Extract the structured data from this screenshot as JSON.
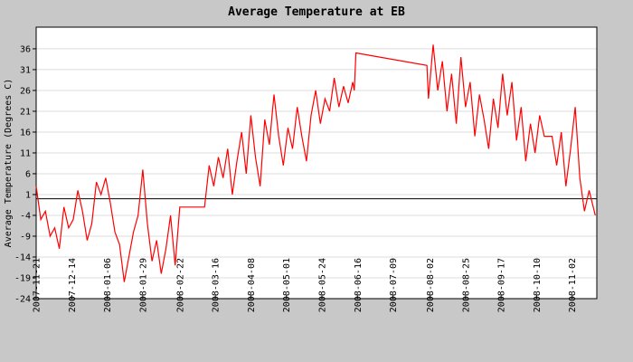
{
  "chart_data": {
    "type": "line",
    "title": "Average Temperature at EB",
    "y_label": "Average Temperature (Degrees C)",
    "x": [
      "2007-11-21",
      "2007-11-24",
      "2007-11-27",
      "2007-11-30",
      "2007-12-03",
      "2007-12-06",
      "2007-12-09",
      "2007-12-12",
      "2007-12-15",
      "2007-12-18",
      "2007-12-21",
      "2007-12-24",
      "2007-12-27",
      "2007-12-30",
      "2008-01-02",
      "2008-01-05",
      "2008-01-08",
      "2008-01-11",
      "2008-01-14",
      "2008-01-17",
      "2008-01-20",
      "2008-01-23",
      "2008-01-26",
      "2008-01-29",
      "2008-02-01",
      "2008-02-04",
      "2008-02-07",
      "2008-02-10",
      "2008-02-13",
      "2008-02-16",
      "2008-02-19",
      "2008-02-22",
      "2008-03-09",
      "2008-03-12",
      "2008-03-15",
      "2008-03-18",
      "2008-03-21",
      "2008-03-24",
      "2008-03-27",
      "2008-03-30",
      "2008-04-02",
      "2008-04-05",
      "2008-04-08",
      "2008-04-11",
      "2008-04-14",
      "2008-04-17",
      "2008-04-20",
      "2008-04-23",
      "2008-04-26",
      "2008-04-29",
      "2008-05-02",
      "2008-05-05",
      "2008-05-08",
      "2008-05-11",
      "2008-05-14",
      "2008-05-17",
      "2008-05-20",
      "2008-05-23",
      "2008-05-26",
      "2008-05-29",
      "2008-06-01",
      "2008-06-04",
      "2008-06-07",
      "2008-06-10",
      "2008-06-13",
      "2008-06-14",
      "2008-06-15",
      "2008-07-31",
      "2008-08-01",
      "2008-08-04",
      "2008-08-07",
      "2008-08-10",
      "2008-08-13",
      "2008-08-16",
      "2008-08-19",
      "2008-08-22",
      "2008-08-25",
      "2008-08-28",
      "2008-08-31",
      "2008-09-03",
      "2008-09-06",
      "2008-09-09",
      "2008-09-12",
      "2008-09-15",
      "2008-09-18",
      "2008-09-21",
      "2008-09-24",
      "2008-09-27",
      "2008-09-30",
      "2008-10-03",
      "2008-10-06",
      "2008-10-09",
      "2008-10-12",
      "2008-10-15",
      "2008-10-20",
      "2008-10-23",
      "2008-10-26",
      "2008-10-29",
      "2008-11-01",
      "2008-11-04",
      "2008-11-07",
      "2008-11-10",
      "2008-11-13",
      "2008-11-15",
      "2008-11-17"
    ],
    "series": [
      {
        "name": "Average Temperature",
        "color": "#ff0000",
        "values": [
          3,
          -5,
          -3,
          -9,
          -7,
          -12,
          -2,
          -7,
          -5,
          2,
          -3,
          -10,
          -6,
          4,
          1,
          5,
          -1,
          -8,
          -11,
          -20,
          -14,
          -8,
          -4,
          7,
          -6,
          -15,
          -10,
          -18,
          -12,
          -4,
          -16,
          -2,
          -2,
          8,
          3,
          10,
          5,
          12,
          1,
          9,
          16,
          6,
          20,
          10,
          3,
          19,
          13,
          25,
          15,
          8,
          17,
          12,
          22,
          15,
          9,
          20,
          26,
          18,
          24,
          21,
          29,
          22,
          27,
          23,
          28,
          26,
          35,
          32,
          24,
          37,
          26,
          33,
          21,
          30,
          18,
          34,
          22,
          28,
          15,
          25,
          19,
          12,
          24,
          17,
          30,
          20,
          28,
          14,
          22,
          9,
          18,
          11,
          20,
          15,
          15,
          8,
          16,
          3,
          12,
          22,
          5,
          -3,
          2,
          -1,
          -4
        ]
      }
    ],
    "xlim": [
      "2007-11-21",
      "2008-11-18"
    ],
    "xticks": [
      "2007-11-21",
      "2007-12-14",
      "2008-01-06",
      "2008-01-29",
      "2008-02-22",
      "2008-03-16",
      "2008-04-08",
      "2008-05-01",
      "2008-05-24",
      "2008-06-16",
      "2008-07-09",
      "2008-08-02",
      "2008-08-25",
      "2008-09-17",
      "2008-10-10",
      "2008-11-02"
    ],
    "ylim": [
      -24,
      41.2
    ],
    "yticks": [
      -24,
      -19,
      -14,
      -9,
      -4,
      1,
      6,
      11,
      16,
      21,
      26,
      31,
      36
    ],
    "grid": true
  }
}
